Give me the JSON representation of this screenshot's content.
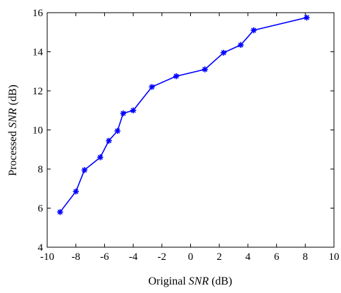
{
  "chart_data": {
    "type": "line",
    "xlabel_parts": [
      "Original ",
      "SNR",
      " (dB)"
    ],
    "ylabel_parts": [
      "Processed ",
      "SNR",
      " (dB)"
    ],
    "xlim": [
      -10,
      10
    ],
    "ylim": [
      4,
      16
    ],
    "xticks": [
      "-10",
      "-8",
      "-6",
      "-4",
      "-2",
      "0",
      "2",
      "4",
      "6",
      "8",
      "10"
    ],
    "yticks": [
      "4",
      "6",
      "8",
      "10",
      "12",
      "14",
      "16"
    ],
    "grid": false,
    "marker": "asterisk",
    "series": [
      {
        "color": "#0000ff",
        "x": [
          -9.1,
          -8.0,
          -7.4,
          -6.3,
          -5.7,
          -5.1,
          -4.7,
          -4.0,
          -2.7,
          -1.0,
          1.0,
          2.3,
          3.5,
          4.4,
          8.1
        ],
        "y": [
          5.8,
          6.85,
          7.95,
          8.6,
          9.45,
          9.95,
          10.85,
          11.0,
          12.2,
          12.75,
          13.1,
          13.95,
          14.35,
          15.1,
          15.75
        ]
      }
    ]
  }
}
